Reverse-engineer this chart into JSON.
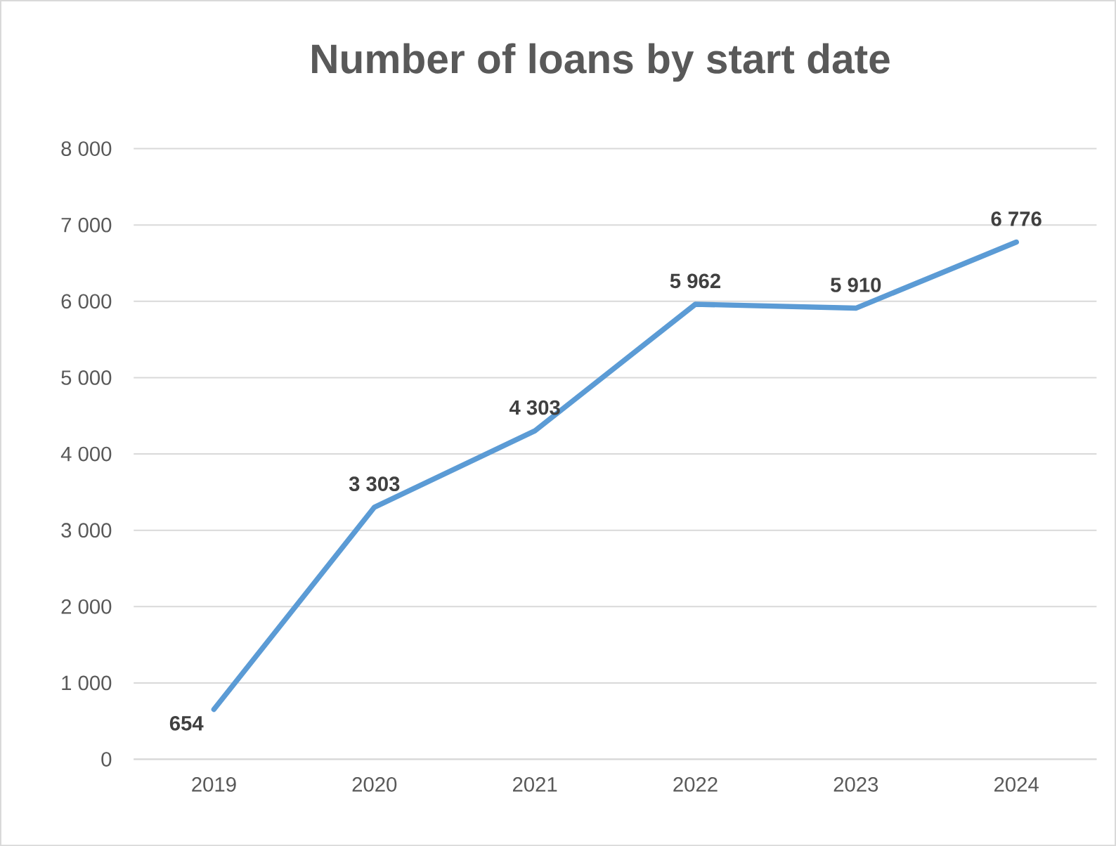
{
  "chart_data": {
    "type": "line",
    "title": "Number of loans by start date",
    "categories": [
      "2019",
      "2020",
      "2021",
      "2022",
      "2023",
      "2024"
    ],
    "values": [
      654,
      3303,
      4303,
      5962,
      5910,
      6776
    ],
    "value_labels": [
      "654",
      "3 303",
      "4 303",
      "5 962",
      "5 910",
      "6 776"
    ],
    "color": "#5b9bd5",
    "ylim": [
      0,
      8000
    ],
    "yticks": [
      0,
      {
        "value": 1000,
        "label": "1 000"
      },
      {
        "value": 2000,
        "label": "2 000"
      },
      {
        "value": 3000,
        "label": "3 000"
      },
      {
        "value": 4000,
        "label": "4 000"
      },
      {
        "value": 5000,
        "label": "5 000"
      },
      {
        "value": 6000,
        "label": "6 000"
      },
      {
        "value": 7000,
        "label": "7 000"
      },
      {
        "value": 8000,
        "label": "8 000"
      }
    ],
    "grid": "y"
  }
}
